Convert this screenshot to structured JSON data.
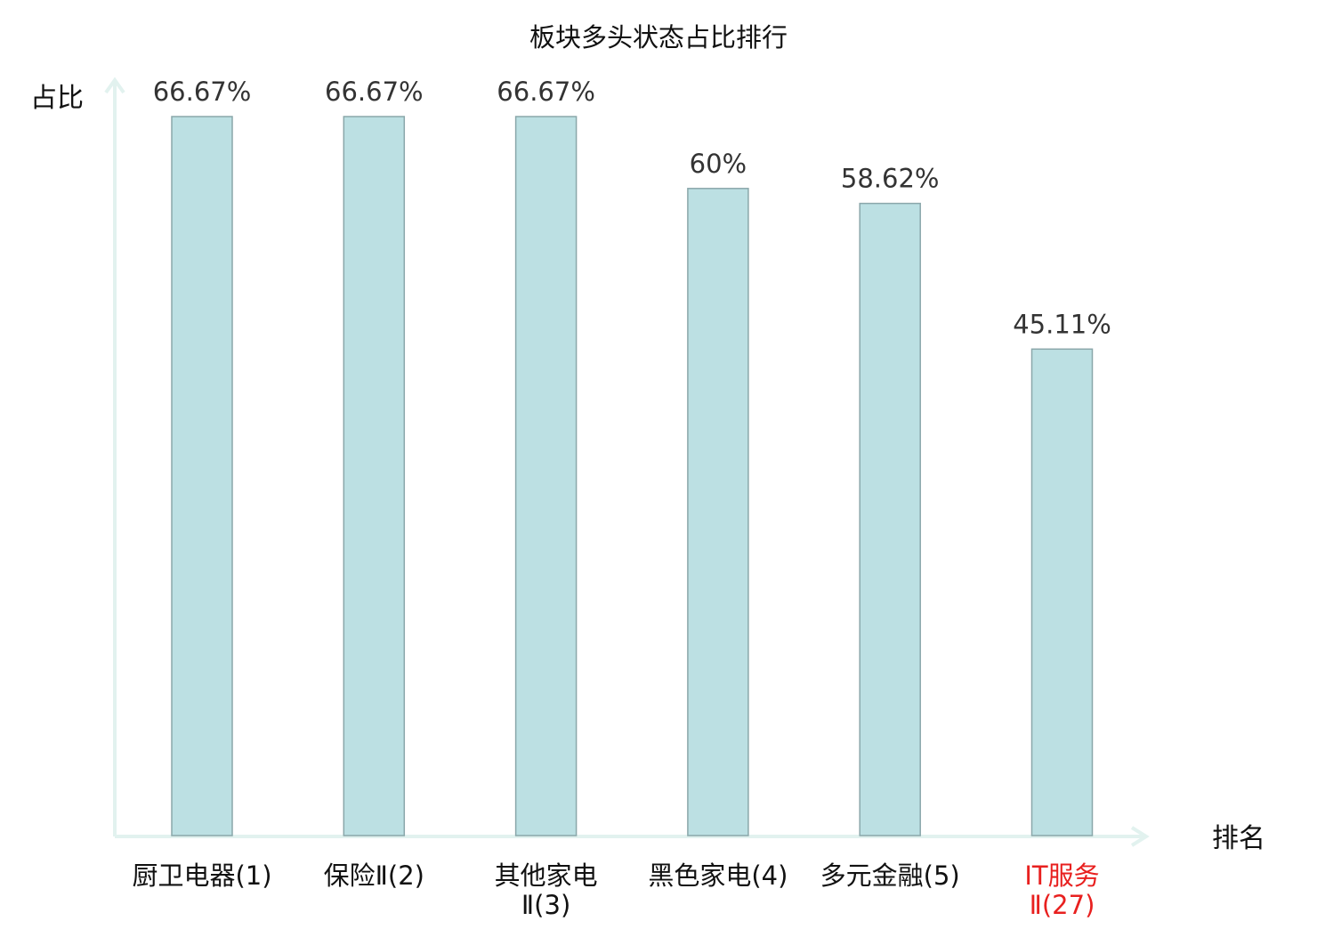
{
  "chart_data": {
    "type": "bar",
    "title": "板块多头状态占比排行",
    "ylabel": "占比",
    "xlabel": "排名",
    "categories": [
      {
        "name": "厨卫电器",
        "rank": "(1)",
        "lines": [
          "厨卫电器(1)"
        ],
        "highlight": false
      },
      {
        "name": "保险Ⅱ",
        "rank": "(2)",
        "lines": [
          "保险Ⅱ(2)"
        ],
        "highlight": false
      },
      {
        "name": "其他家电Ⅱ",
        "rank": "(3)",
        "lines": [
          "其他家电",
          "Ⅱ(3)"
        ],
        "highlight": false
      },
      {
        "name": "黑色家电",
        "rank": "(4)",
        "lines": [
          "黑色家电(4)"
        ],
        "highlight": false
      },
      {
        "name": "多元金融",
        "rank": "(5)",
        "lines": [
          "多元金融(5)"
        ],
        "highlight": false
      },
      {
        "name": "IT服务Ⅱ",
        "rank": "(27)",
        "lines": [
          "IT服务",
          "Ⅱ(27)"
        ],
        "highlight": true
      }
    ],
    "values": [
      66.67,
      66.67,
      66.67,
      60,
      58.62,
      45.11
    ],
    "value_labels": [
      "66.67%",
      "66.67%",
      "66.67%",
      "60%",
      "58.62%",
      "45.11%"
    ],
    "ylim": [
      0,
      66.67
    ],
    "grid": false,
    "legend": "none",
    "colors": {
      "bar_fill": "#bce0e3",
      "bar_stroke": "#8aa7aa",
      "axis": "#e2f2ef",
      "text": "#333333",
      "label": "#111111",
      "highlight": "#e8201f"
    }
  }
}
